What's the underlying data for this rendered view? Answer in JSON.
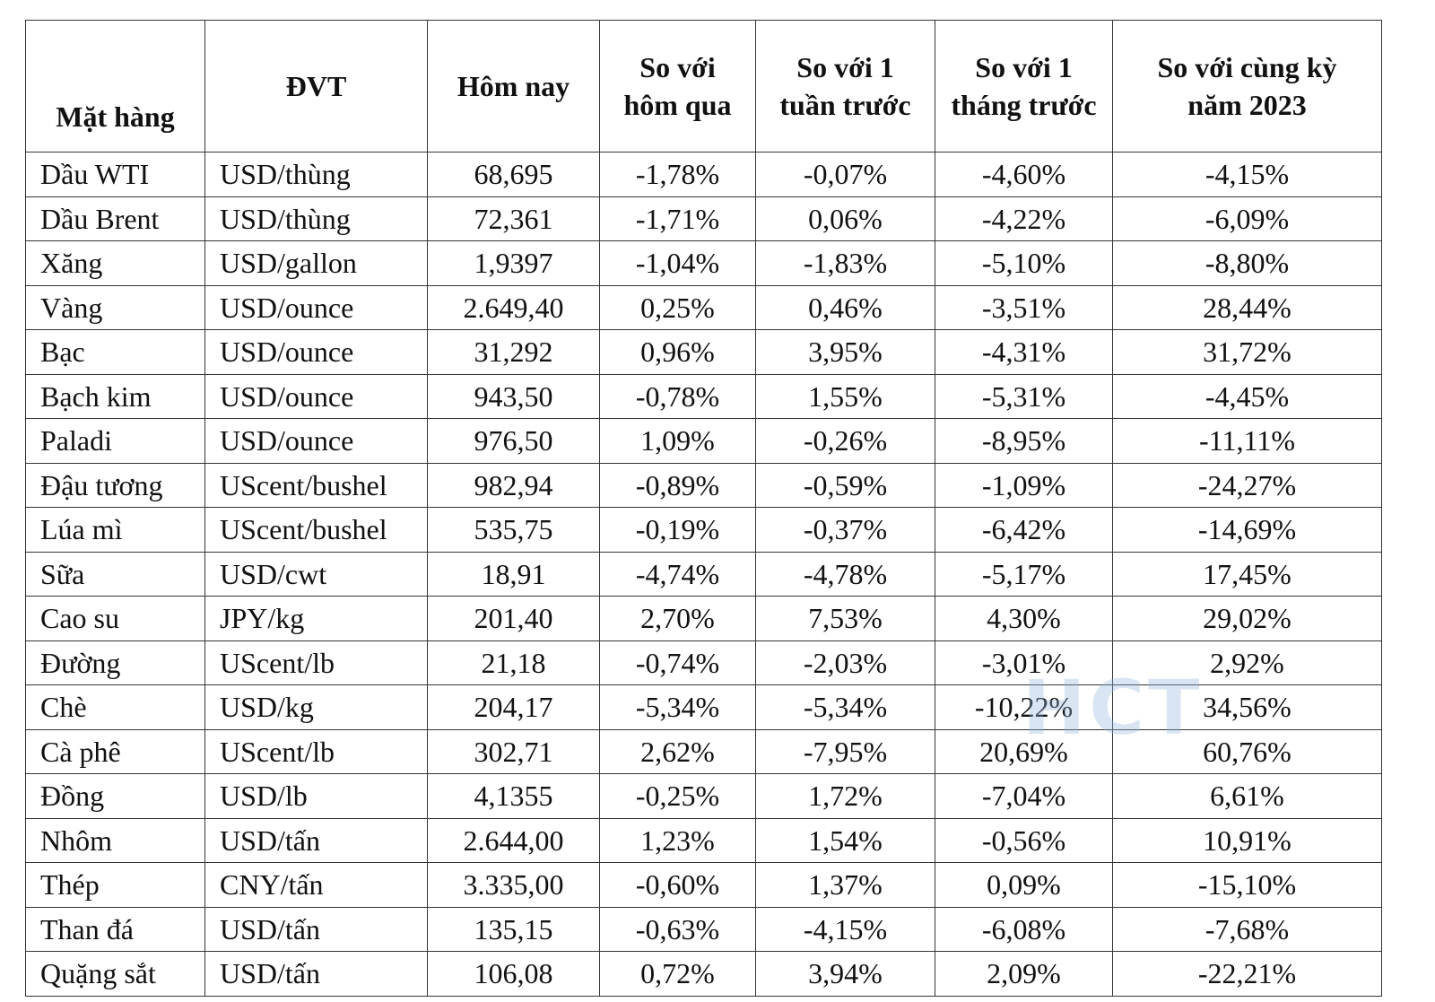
{
  "table": {
    "headers": [
      "Mặt hàng",
      "ĐVT",
      "Hôm nay",
      "So với hôm qua",
      "So với 1 tuần trước",
      "So với 1 tháng trước",
      "So với cùng kỳ năm 2023"
    ],
    "rows": [
      [
        "Dầu WTI",
        "USD/thùng",
        "68,695",
        "-1,78%",
        "-0,07%",
        "-4,60%",
        "-4,15%"
      ],
      [
        "Dầu Brent",
        "USD/thùng",
        "72,361",
        "-1,71%",
        "0,06%",
        "-4,22%",
        "-6,09%"
      ],
      [
        "Xăng",
        "USD/gallon",
        "1,9397",
        "-1,04%",
        "-1,83%",
        "-5,10%",
        "-8,80%"
      ],
      [
        "Vàng",
        "USD/ounce",
        "2.649,40",
        "0,25%",
        "0,46%",
        "-3,51%",
        "28,44%"
      ],
      [
        "Bạc",
        "USD/ounce",
        "31,292",
        "0,96%",
        "3,95%",
        "-4,31%",
        "31,72%"
      ],
      [
        "Bạch kim",
        "USD/ounce",
        "943,50",
        "-0,78%",
        "1,55%",
        "-5,31%",
        "-4,45%"
      ],
      [
        "Paladi",
        "USD/ounce",
        "976,50",
        "1,09%",
        "-0,26%",
        "-8,95%",
        "-11,11%"
      ],
      [
        "Đậu tương",
        "UScent/bushel",
        "982,94",
        "-0,89%",
        "-0,59%",
        "-1,09%",
        "-24,27%"
      ],
      [
        "Lúa mì",
        "UScent/bushel",
        "535,75",
        "-0,19%",
        "-0,37%",
        "-6,42%",
        "-14,69%"
      ],
      [
        "Sữa",
        "USD/cwt",
        "18,91",
        "-4,74%",
        "-4,78%",
        "-5,17%",
        "17,45%"
      ],
      [
        "Cao su",
        "JPY/kg",
        "201,40",
        "2,70%",
        "7,53%",
        "4,30%",
        "29,02%"
      ],
      [
        "Đường",
        "UScent/lb",
        "21,18",
        "-0,74%",
        "-2,03%",
        "-3,01%",
        "2,92%"
      ],
      [
        "Chè",
        "USD/kg",
        "204,17",
        "-5,34%",
        "-5,34%",
        "-10,22%",
        "34,56%"
      ],
      [
        "Cà phê",
        "UScent/lb",
        "302,71",
        "2,62%",
        "-7,95%",
        "20,69%",
        "60,76%"
      ],
      [
        "Đồng",
        "USD/lb",
        "4,1355",
        "-0,25%",
        "1,72%",
        "-7,04%",
        "6,61%"
      ],
      [
        "Nhôm",
        "USD/tấn",
        "2.644,00",
        "1,23%",
        "1,54%",
        "-0,56%",
        "10,91%"
      ],
      [
        "Thép",
        "CNY/tấn",
        "3.335,00",
        "-0,60%",
        "1,37%",
        "0,09%",
        "-15,10%"
      ],
      [
        "Than đá",
        "USD/tấn",
        "135,15",
        "-0,63%",
        "-4,15%",
        "-6,08%",
        "-7,68%"
      ],
      [
        "Quặng sắt",
        "USD/tấn",
        "106,08",
        "0,72%",
        "3,94%",
        "2,09%",
        "-22,21%"
      ]
    ]
  },
  "watermark": "HCT"
}
